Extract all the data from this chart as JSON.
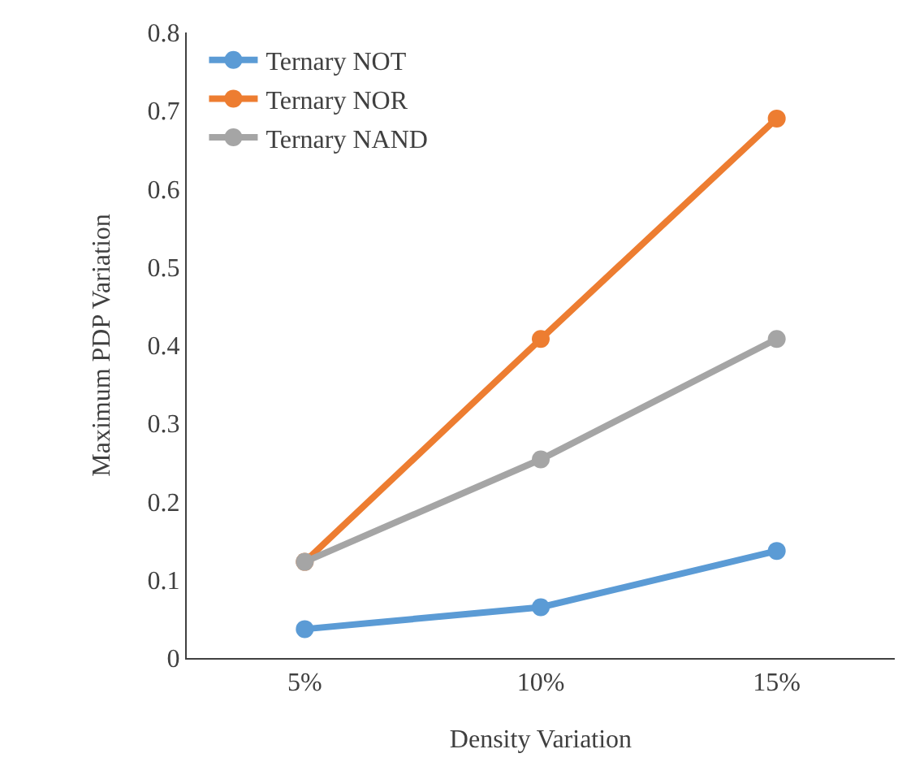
{
  "chart_data": {
    "type": "line",
    "xlabel": "Density Variation",
    "ylabel": "Maximum PDP Variation",
    "categories": [
      "5%",
      "10%",
      "15%"
    ],
    "series": [
      {
        "name": "Ternary NOT",
        "color": "#5b9bd5",
        "values": [
          0.037,
          0.065,
          0.137
        ]
      },
      {
        "name": "Ternary NOR",
        "color": "#ed7d31",
        "values": [
          0.123,
          0.408,
          0.69
        ]
      },
      {
        "name": "Ternary NAND",
        "color": "#a5a5a5",
        "values": [
          0.123,
          0.254,
          0.408
        ]
      }
    ],
    "ylim": [
      0,
      0.8
    ],
    "yticks": [
      0,
      0.1,
      0.2,
      0.3,
      0.4,
      0.5,
      0.6,
      0.7,
      0.8
    ],
    "legend": "top left",
    "marker": "circle",
    "line_style": "solid"
  }
}
